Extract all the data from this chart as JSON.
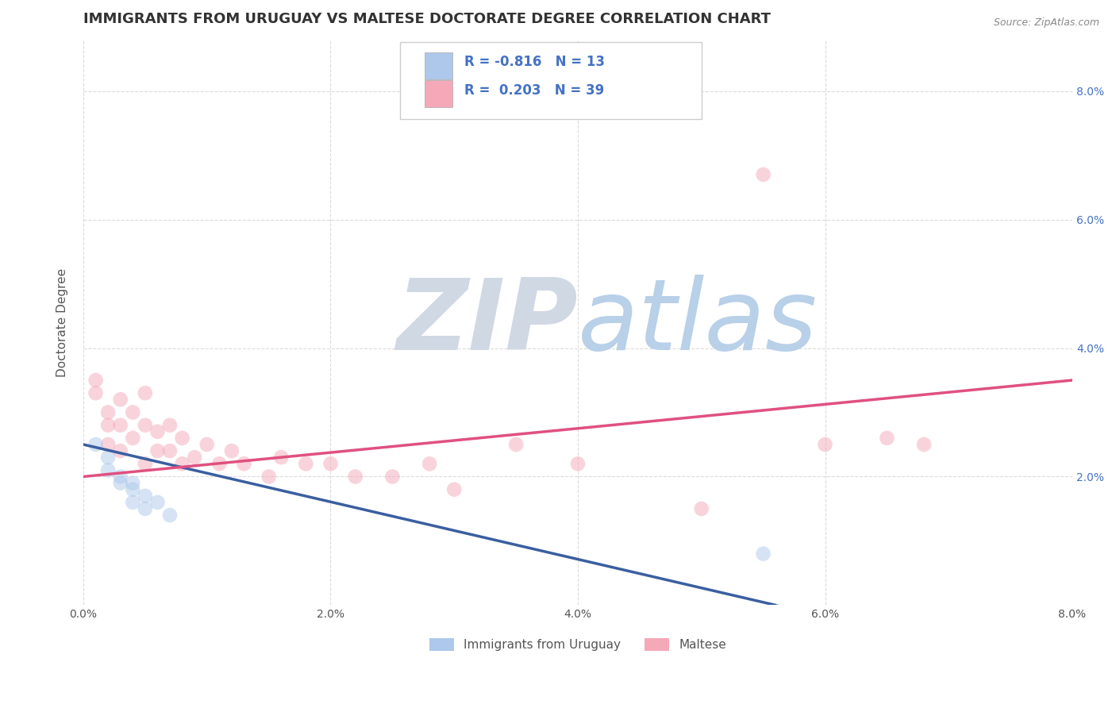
{
  "title": "IMMIGRANTS FROM URUGUAY VS MALTESE DOCTORATE DEGREE CORRELATION CHART",
  "source": "Source: ZipAtlas.com",
  "ylabel": "Doctorate Degree",
  "xlim": [
    0.0,
    0.08
  ],
  "ylim": [
    0.0,
    0.088
  ],
  "xtick_labels": [
    "0.0%",
    "2.0%",
    "4.0%",
    "6.0%",
    "8.0%"
  ],
  "xtick_vals": [
    0.0,
    0.02,
    0.04,
    0.06,
    0.08
  ],
  "ytick_right_labels": [
    "2.0%",
    "4.0%",
    "6.0%",
    "8.0%"
  ],
  "ytick_right_vals": [
    0.02,
    0.04,
    0.06,
    0.08
  ],
  "legend_entries": [
    {
      "label": "Immigrants from Uruguay",
      "color": "#adc8eb",
      "R": -0.816,
      "N": 13
    },
    {
      "label": "Maltese",
      "color": "#f5a8b8",
      "R": 0.203,
      "N": 39
    }
  ],
  "watermark_ZIP": "ZIP",
  "watermark_atlas": "atlas",
  "watermark_ZIP_color": "#d0d8e4",
  "watermark_atlas_color": "#b8d0e8",
  "background_color": "#ffffff",
  "grid_color": "#cccccc",
  "uruguay_scatter_x": [
    0.001,
    0.002,
    0.002,
    0.003,
    0.003,
    0.004,
    0.004,
    0.004,
    0.005,
    0.005,
    0.006,
    0.007,
    0.055
  ],
  "uruguay_scatter_y": [
    0.025,
    0.023,
    0.021,
    0.02,
    0.019,
    0.019,
    0.018,
    0.016,
    0.017,
    0.015,
    0.016,
    0.014,
    0.008
  ],
  "maltese_scatter_x": [
    0.001,
    0.001,
    0.002,
    0.002,
    0.002,
    0.003,
    0.003,
    0.003,
    0.004,
    0.004,
    0.005,
    0.005,
    0.005,
    0.006,
    0.006,
    0.007,
    0.007,
    0.008,
    0.008,
    0.009,
    0.01,
    0.011,
    0.012,
    0.013,
    0.015,
    0.016,
    0.018,
    0.02,
    0.022,
    0.025,
    0.028,
    0.03,
    0.035,
    0.04,
    0.05,
    0.055,
    0.06,
    0.065,
    0.068
  ],
  "maltese_scatter_y": [
    0.033,
    0.035,
    0.03,
    0.028,
    0.025,
    0.032,
    0.028,
    0.024,
    0.03,
    0.026,
    0.033,
    0.028,
    0.022,
    0.027,
    0.024,
    0.028,
    0.024,
    0.026,
    0.022,
    0.023,
    0.025,
    0.022,
    0.024,
    0.022,
    0.02,
    0.023,
    0.022,
    0.022,
    0.02,
    0.02,
    0.022,
    0.018,
    0.025,
    0.022,
    0.015,
    0.067,
    0.025,
    0.026,
    0.025
  ],
  "scatter_size": 180,
  "scatter_alpha": 0.5,
  "line_width": 2.5,
  "blue_line_color": "#3a5fa0",
  "pink_line_color": "#e05080",
  "blue_line_start_y": 0.025,
  "blue_line_end_x": 0.056,
  "blue_line_end_y": 0.0,
  "pink_line_start_y": 0.02,
  "pink_line_end_y": 0.035,
  "title_fontsize": 13,
  "axis_label_fontsize": 11,
  "tick_fontsize": 10
}
